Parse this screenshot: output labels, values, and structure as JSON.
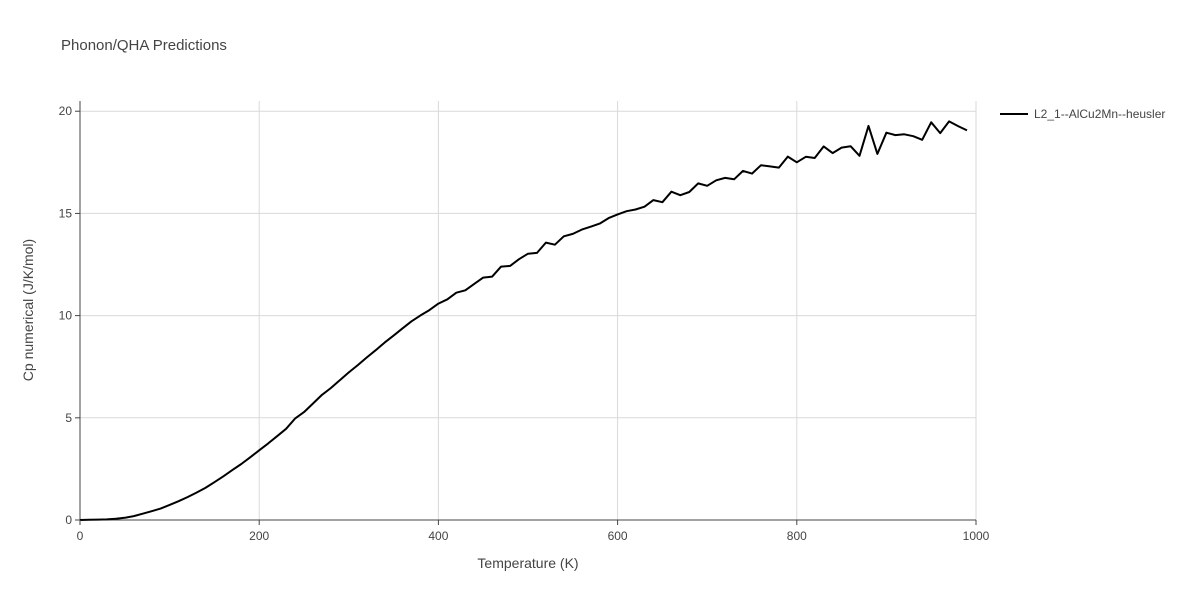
{
  "chart_data": {
    "type": "line",
    "title": "Phonon/QHA Predictions",
    "xlabel": "Temperature (K)",
    "ylabel": "Cp numerical (J/K/mol)",
    "xlim": [
      0,
      1000
    ],
    "ylim": [
      0,
      20.5
    ],
    "x_ticks": [
      0,
      200,
      400,
      600,
      800,
      1000
    ],
    "y_ticks": [
      0,
      5,
      10,
      15,
      20
    ],
    "grid": true,
    "legend_position": "top-right",
    "series": [
      {
        "name": "L2_1--AlCu2Mn--heusler",
        "color": "#000000",
        "x": [
          0,
          10,
          20,
          30,
          40,
          50,
          60,
          70,
          80,
          90,
          100,
          110,
          120,
          130,
          140,
          150,
          160,
          170,
          180,
          190,
          200,
          210,
          220,
          230,
          240,
          250,
          260,
          270,
          280,
          290,
          300,
          310,
          320,
          330,
          340,
          350,
          360,
          370,
          380,
          390,
          400,
          410,
          420,
          430,
          440,
          450,
          460,
          470,
          480,
          490,
          500,
          510,
          520,
          530,
          540,
          550,
          560,
          570,
          580,
          590,
          600,
          610,
          620,
          630,
          640,
          650,
          660,
          670,
          680,
          690,
          700,
          710,
          720,
          730,
          740,
          750,
          760,
          770,
          780,
          790,
          800,
          810,
          820,
          830,
          840,
          850,
          860,
          870,
          880,
          890,
          900,
          910,
          920,
          930,
          940,
          950,
          960,
          970,
          980,
          990
        ],
        "y": [
          0,
          0.01,
          0.02,
          0.03,
          0.06,
          0.11,
          0.19,
          0.31,
          0.43,
          0.56,
          0.74,
          0.92,
          1.12,
          1.34,
          1.57,
          1.85,
          2.14,
          2.44,
          2.74,
          3.07,
          3.41,
          3.75,
          4.1,
          4.46,
          4.96,
          5.28,
          5.7,
          6.12,
          6.46,
          6.84,
          7.22,
          7.58,
          7.95,
          8.31,
          8.68,
          9.02,
          9.38,
          9.72,
          10.01,
          10.27,
          10.59,
          10.8,
          11.12,
          11.24,
          11.55,
          11.86,
          11.91,
          12.4,
          12.43,
          12.76,
          13.03,
          13.07,
          13.57,
          13.47,
          13.88,
          14.0,
          14.21,
          14.35,
          14.5,
          14.77,
          14.95,
          15.11,
          15.19,
          15.33,
          15.65,
          15.55,
          16.06,
          15.89,
          16.05,
          16.47,
          16.35,
          16.62,
          16.74,
          16.67,
          17.08,
          16.95,
          17.36,
          17.3,
          17.24,
          17.78,
          17.5,
          17.77,
          17.71,
          18.28,
          17.95,
          18.22,
          18.29,
          17.82,
          19.28,
          17.91,
          18.95,
          18.83,
          18.87,
          18.78,
          18.6,
          19.46,
          18.93,
          19.5,
          19.27,
          19.06
        ]
      }
    ]
  }
}
